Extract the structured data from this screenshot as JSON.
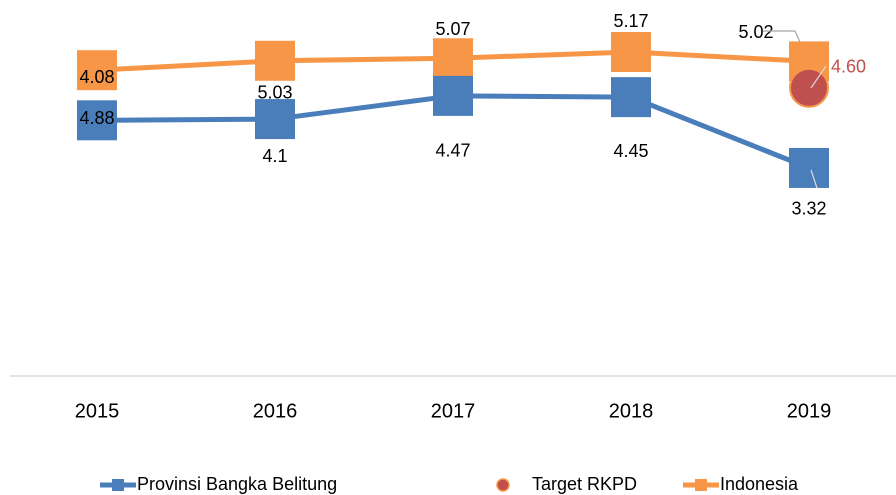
{
  "chart_data": {
    "type": "line",
    "categories": [
      "2015",
      "2016",
      "2017",
      "2018",
      "2019"
    ],
    "series": [
      {
        "name": "Provinsi Bangka Belitung",
        "color": "#4a7ebb",
        "marker": "square",
        "values": [
          4.08,
          4.1,
          4.47,
          4.45,
          3.32
        ]
      },
      {
        "name": "Target RKPD",
        "color": "#c0504d",
        "marker": "circle",
        "values": [
          null,
          null,
          null,
          null,
          4.6
        ],
        "value_labels": [
          null,
          null,
          null,
          null,
          "4.60"
        ]
      },
      {
        "name": "Indonesia",
        "color": "#f79646",
        "marker": "square",
        "values": [
          4.88,
          5.03,
          5.07,
          5.17,
          5.02
        ]
      }
    ],
    "ylim": [
      0,
      6
    ],
    "grid": false,
    "legend": "bottom"
  }
}
